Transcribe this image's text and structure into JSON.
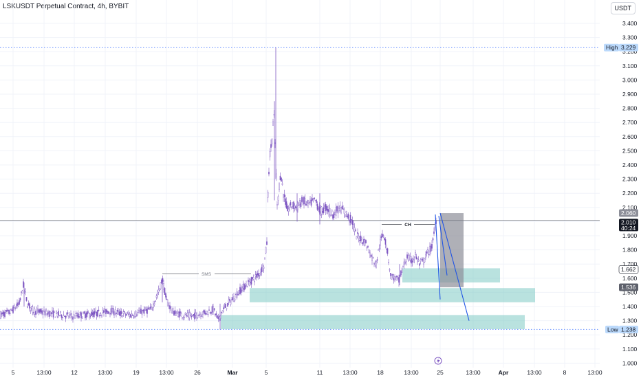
{
  "header": {
    "title": "LSKUSDT Perpetual Contract, 4h, BYBIT",
    "currency_button": "USDT"
  },
  "colors": {
    "candle": "#7e57c2",
    "zone": "#80cbc4",
    "projection": "#1e53e5",
    "target_box": "#8d8f99",
    "grid": "#f0f3fa",
    "dotted": "#2962ff"
  },
  "chart_data": {
    "type": "candlestick",
    "title": "LSKUSDT Perpetual Contract, 4h, BYBIT",
    "ylim": [
      0.96,
      3.49
    ],
    "y_ticks": [
      "1.000",
      "1.100",
      "1.200",
      "1.300",
      "1.400",
      "1.500",
      "1.600",
      "1.700",
      "1.800",
      "1.900",
      "2.000",
      "2.100",
      "2.200",
      "2.300",
      "2.400",
      "2.500",
      "2.600",
      "2.700",
      "2.800",
      "2.900",
      "3.000",
      "3.100",
      "3.200",
      "3.300",
      "3.400"
    ],
    "x_ticks": [
      "5",
      "13:00",
      "12",
      "13:00",
      "19",
      "13:00",
      "26",
      "Mar",
      "5",
      "11",
      "13:00",
      "18",
      "13:00",
      "25",
      "13:00",
      "Apr",
      "13:00",
      "8",
      "13:00"
    ],
    "price_path": [
      [
        0,
        1.34
      ],
      [
        15,
        1.36
      ],
      [
        28,
        1.42
      ],
      [
        34,
        1.55
      ],
      [
        40,
        1.42
      ],
      [
        48,
        1.37
      ],
      [
        60,
        1.36
      ],
      [
        75,
        1.35
      ],
      [
        90,
        1.34
      ],
      [
        105,
        1.33
      ],
      [
        120,
        1.34
      ],
      [
        140,
        1.35
      ],
      [
        160,
        1.37
      ],
      [
        175,
        1.35
      ],
      [
        190,
        1.34
      ],
      [
        205,
        1.36
      ],
      [
        220,
        1.38
      ],
      [
        232,
        1.52
      ],
      [
        236,
        1.6
      ],
      [
        242,
        1.44
      ],
      [
        252,
        1.36
      ],
      [
        265,
        1.34
      ],
      [
        280,
        1.33
      ],
      [
        292,
        1.35
      ],
      [
        300,
        1.36
      ],
      [
        310,
        1.38
      ],
      [
        318,
        1.3
      ],
      [
        322,
        1.36
      ],
      [
        330,
        1.41
      ],
      [
        340,
        1.46
      ],
      [
        350,
        1.52
      ],
      [
        360,
        1.56
      ],
      [
        370,
        1.6
      ],
      [
        378,
        1.64
      ],
      [
        384,
        1.7
      ],
      [
        388,
        1.85
      ],
      [
        390,
        2.3
      ],
      [
        393,
        2.5
      ],
      [
        396,
        2.6
      ],
      [
        398,
        2.78
      ],
      [
        400,
        2.55
      ],
      [
        403,
        2.1
      ],
      [
        408,
        2.35
      ],
      [
        412,
        2.2
      ],
      [
        418,
        2.08
      ],
      [
        425,
        2.12
      ],
      [
        432,
        2.1
      ],
      [
        440,
        2.15
      ],
      [
        448,
        2.12
      ],
      [
        458,
        2.15
      ],
      [
        466,
        2.07
      ],
      [
        474,
        2.1
      ],
      [
        484,
        2.05
      ],
      [
        494,
        2.1
      ],
      [
        504,
        2.05
      ],
      [
        512,
        2.0
      ],
      [
        518,
        1.9
      ],
      [
        525,
        1.88
      ],
      [
        532,
        1.85
      ],
      [
        540,
        1.75
      ],
      [
        547,
        1.7
      ],
      [
        552,
        1.84
      ],
      [
        558,
        1.92
      ],
      [
        563,
        1.8
      ],
      [
        568,
        1.62
      ],
      [
        574,
        1.6
      ],
      [
        580,
        1.58
      ],
      [
        586,
        1.68
      ],
      [
        592,
        1.75
      ],
      [
        598,
        1.72
      ],
      [
        604,
        1.76
      ],
      [
        610,
        1.7
      ],
      [
        616,
        1.72
      ],
      [
        622,
        1.78
      ],
      [
        628,
        1.82
      ],
      [
        632,
        1.95
      ],
      [
        635,
        2.04
      ]
    ],
    "key_levels": {
      "high": {
        "label": "High",
        "value": "3.229"
      },
      "low": {
        "label": "Low",
        "value": "1.238"
      },
      "current": {
        "value": "2.010",
        "countdown": "40:24"
      },
      "box_top": "2.060",
      "level_a": "1.662",
      "level_b": "1.536"
    },
    "annotations": {
      "sms": "SMS",
      "ch": "CH"
    },
    "zones": [
      {
        "from": 1.67,
        "to": 1.57,
        "x0": 585,
        "x1": 727
      },
      {
        "from": 1.53,
        "to": 1.43,
        "x0": 363,
        "x1": 778
      },
      {
        "from": 1.34,
        "to": 1.24,
        "x0": 321,
        "x1": 763
      }
    ],
    "target_box": {
      "from": 2.06,
      "to": 1.536,
      "x0": 640,
      "x1": 674
    },
    "projection_lines": [
      [
        [
          633,
          2.05
        ],
        [
          640,
          1.45
        ]
      ],
      [
        [
          638,
          2.04
        ],
        [
          650,
          1.62
        ]
      ],
      [
        [
          640,
          2.06
        ],
        [
          682,
          1.3
        ]
      ]
    ],
    "structure_lines": {
      "sms": {
        "y": 1.63,
        "x0": 236,
        "x1": 365
      },
      "ch": {
        "y": 1.98,
        "x0": 555,
        "x1": 632
      }
    }
  }
}
